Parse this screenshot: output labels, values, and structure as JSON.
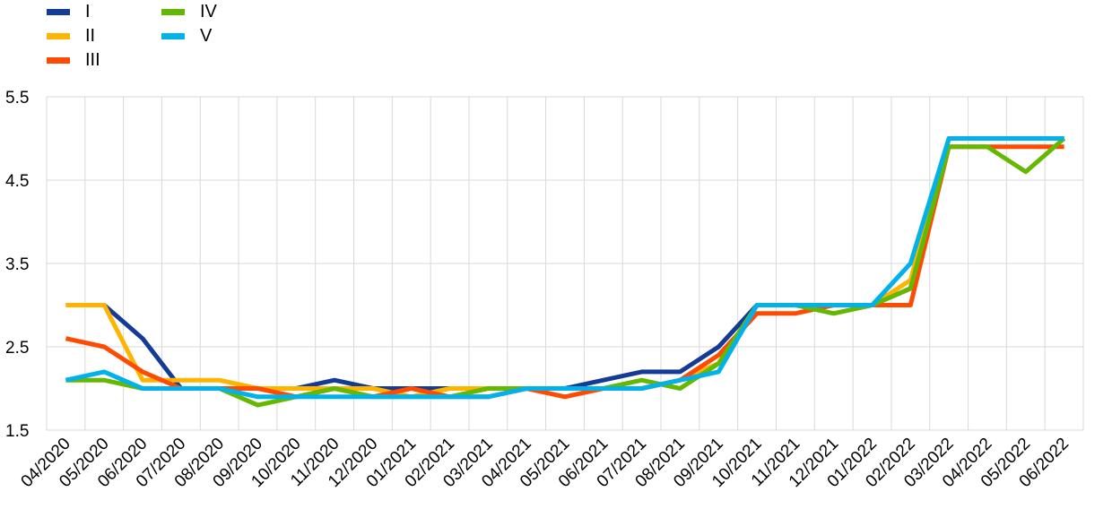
{
  "chart_data": {
    "type": "line",
    "title": "",
    "xlabel": "",
    "ylabel": "",
    "ylim": [
      1.5,
      5.5
    ],
    "y_ticks": [
      "5.5",
      "4.5",
      "3.5",
      "2.5",
      "1.5"
    ],
    "grid": true,
    "legend_position": "top-left",
    "categories": [
      "04/2020",
      "05/2020",
      "06/2020",
      "07/2020",
      "08/2020",
      "09/2020",
      "10/2020",
      "11/2020",
      "12/2020",
      "01/2021",
      "02/2021",
      "03/2021",
      "04/2021",
      "05/2021",
      "06/2021",
      "07/2021",
      "08/2021",
      "09/2021",
      "10/2021",
      "11/2021",
      "12/2021",
      "01/2022",
      "02/2022",
      "03/2022",
      "04/2022",
      "05/2022",
      "06/2022"
    ],
    "series": [
      {
        "name": "I",
        "color": "#143c96",
        "values": [
          3.0,
          3.0,
          2.6,
          2.0,
          2.0,
          2.0,
          2.0,
          2.1,
          2.0,
          2.0,
          2.0,
          2.0,
          2.0,
          2.0,
          2.1,
          2.2,
          2.2,
          2.5,
          3.0,
          3.0,
          3.0,
          3.0,
          3.2,
          5.0,
          5.0,
          5.0,
          5.0
        ]
      },
      {
        "name": "II",
        "color": "#ffb400",
        "values": [
          3.0,
          3.0,
          2.1,
          2.1,
          2.1,
          2.0,
          2.0,
          2.0,
          2.0,
          1.9,
          2.0,
          2.0,
          2.0,
          2.0,
          2.0,
          2.0,
          2.1,
          2.3,
          3.0,
          3.0,
          3.0,
          3.0,
          3.3,
          5.0,
          5.0,
          5.0,
          5.0
        ]
      },
      {
        "name": "III",
        "color": "#ff4b00",
        "values": [
          2.6,
          2.5,
          2.2,
          2.0,
          2.0,
          2.0,
          1.9,
          2.0,
          1.9,
          2.0,
          1.9,
          1.9,
          2.0,
          1.9,
          2.0,
          2.0,
          2.1,
          2.4,
          2.9,
          2.9,
          3.0,
          3.0,
          3.0,
          4.9,
          4.9,
          4.9,
          4.9
        ]
      },
      {
        "name": "IV",
        "color": "#65b800",
        "values": [
          2.1,
          2.1,
          2.0,
          2.0,
          2.0,
          1.8,
          1.9,
          2.0,
          1.9,
          1.9,
          1.9,
          2.0,
          2.0,
          2.0,
          2.0,
          2.1,
          2.0,
          2.3,
          3.0,
          3.0,
          2.9,
          3.0,
          3.2,
          4.9,
          4.9,
          4.6,
          5.0
        ]
      },
      {
        "name": "V",
        "color": "#00b1ea",
        "values": [
          2.1,
          2.2,
          2.0,
          2.0,
          2.0,
          1.9,
          1.9,
          1.9,
          1.9,
          1.9,
          1.9,
          1.9,
          2.0,
          2.0,
          2.0,
          2.0,
          2.1,
          2.2,
          3.0,
          3.0,
          3.0,
          3.0,
          3.5,
          5.0,
          5.0,
          5.0,
          5.0
        ]
      }
    ]
  }
}
